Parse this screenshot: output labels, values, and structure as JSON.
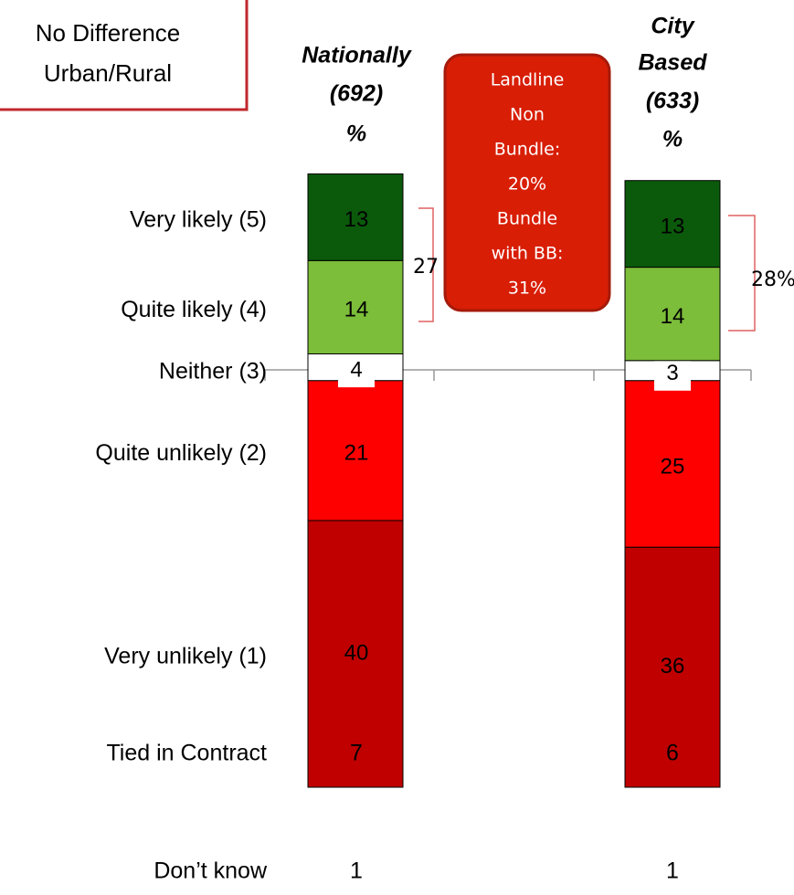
{
  "chart_data": {
    "type": "stacked_bar",
    "categories": [
      [
        "Nationally",
        "(692)",
        "%"
      ],
      [
        "City",
        "Based",
        "(633)",
        "%"
      ]
    ],
    "series": [
      {
        "name": "Very likely (5)",
        "color": "#0b5a0b",
        "values": [
          13,
          13
        ]
      },
      {
        "name": "Quite likely (4)",
        "color": "#7cbd3a",
        "values": [
          14,
          14
        ]
      },
      {
        "name": "Neither (3)",
        "color": "#ffffff",
        "values": [
          4,
          3
        ]
      },
      {
        "name": "Quite unlikely (2)",
        "color": "#ff0000",
        "values": [
          21,
          25
        ]
      },
      {
        "name": "Very unlikely (1)",
        "color": "#c00000",
        "values": [
          40,
          36
        ]
      }
    ],
    "note_box": [
      "No Difference",
      "Urban/Rural"
    ],
    "callout": [
      "Landline",
      "Non",
      "Bundle:",
      "20%",
      "Bundle",
      "with BB:",
      "31%"
    ],
    "bracket_labels": [
      "27",
      "28%"
    ],
    "extra_rows": [
      {
        "label": "Tied in Contract",
        "values": [
          7,
          6
        ]
      },
      {
        "label": "Don’t know",
        "values": [
          1,
          1
        ]
      }
    ]
  }
}
